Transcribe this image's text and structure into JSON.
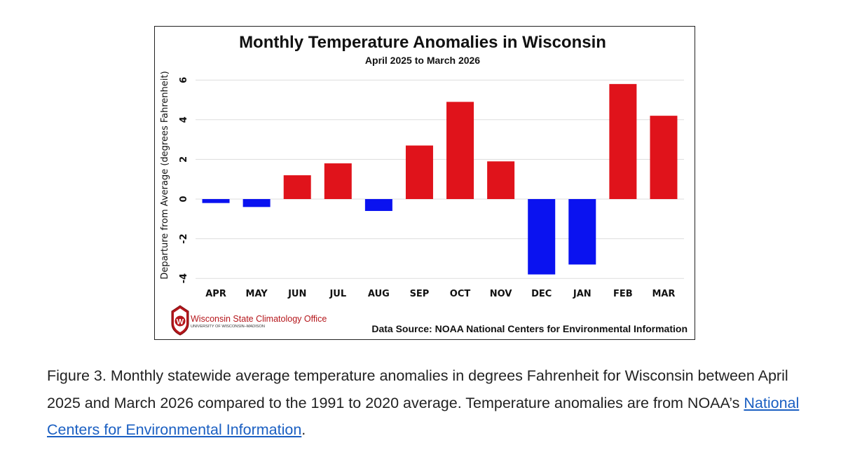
{
  "chart_data": {
    "type": "bar",
    "title": "Monthly Temperature Anomalies in Wisconsin",
    "subtitle": "April 2025 to March 2026",
    "xlabel": "",
    "ylabel": "Departure from Average (degrees Fahrenheit)",
    "categories": [
      "APR",
      "MAY",
      "JUN",
      "JUL",
      "AUG",
      "SEP",
      "OCT",
      "NOV",
      "DEC",
      "JAN",
      "FEB",
      "MAR"
    ],
    "values": [
      -0.2,
      -0.4,
      1.2,
      1.8,
      -0.6,
      2.7,
      4.9,
      1.9,
      -3.8,
      -3.3,
      5.8,
      4.2
    ],
    "yticks": [
      6,
      4,
      2,
      0,
      -2,
      -4
    ],
    "ylim": [
      -4.4,
      6.6
    ],
    "grid": true,
    "colors": {
      "positive": "#e0131b",
      "negative": "#0a12f0",
      "grid": "#dddddd"
    },
    "source": "Data Source: NOAA National Centers for Environmental Information"
  },
  "logo": {
    "name": "Wisconsin State Climatology Office",
    "subtitle": "UNIVERSITY OF WISCONSIN–MADISON",
    "letter": "W",
    "color": "#b5161b"
  },
  "caption": {
    "text": "Figure 3. Monthly statewide average temperature anomalies in degrees Fahrenheit for Wisconsin between April 2025 and March 2026 compared to the 1991 to 2020 average. Temperature anomalies are from NOAA’s ",
    "link_text": "National Centers for Environmental Information",
    "trailing": "."
  }
}
